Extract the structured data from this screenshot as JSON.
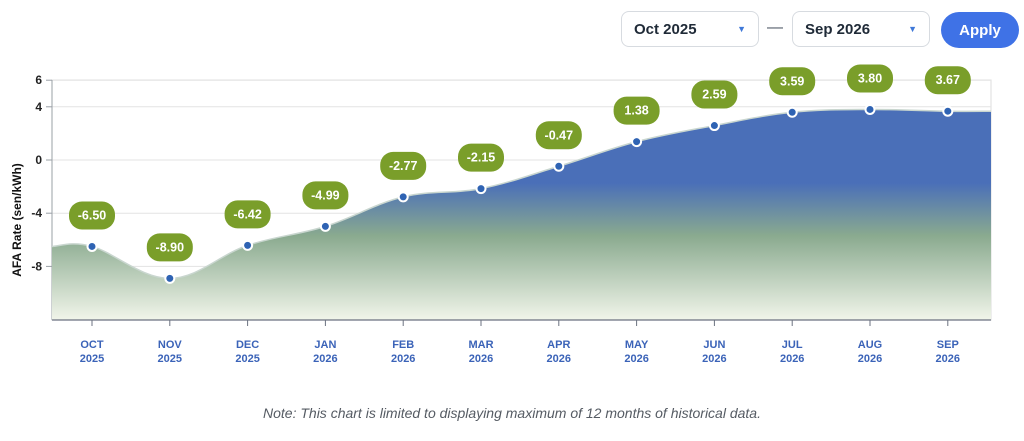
{
  "controls": {
    "from_value": "Oct 2025",
    "to_value": "Sep 2026",
    "separator": "—",
    "apply_label": "Apply"
  },
  "note": "Note: This chart is limited to displaying maximum of 12 months of historical data.",
  "colors": {
    "area_top": "#4a6fb8",
    "area_mid": "#8aaa8f",
    "area_bottom": "#f1f5ea",
    "label_bg": "#7a9e2a",
    "point": "#2f63b3",
    "axis_text": "#3b63b8",
    "apply_button": "#3f72e6"
  },
  "chart_data": {
    "type": "area",
    "categories": [
      [
        "OCT",
        "2025"
      ],
      [
        "NOV",
        "2025"
      ],
      [
        "DEC",
        "2025"
      ],
      [
        "JAN",
        "2026"
      ],
      [
        "FEB",
        "2026"
      ],
      [
        "MAR",
        "2026"
      ],
      [
        "APR",
        "2026"
      ],
      [
        "MAY",
        "2026"
      ],
      [
        "JUN",
        "2026"
      ],
      [
        "JUL",
        "2026"
      ],
      [
        "AUG",
        "2026"
      ],
      [
        "SEP",
        "2026"
      ]
    ],
    "values": [
      -6.5,
      -8.9,
      -6.42,
      -4.99,
      -2.77,
      -2.15,
      -0.47,
      1.38,
      2.59,
      3.59,
      3.8,
      3.67
    ],
    "data_labels": [
      "-6.50",
      "-8.90",
      "-6.42",
      "-4.99",
      "-2.77",
      "-2.15",
      "-0.47",
      "1.38",
      "2.59",
      "3.59",
      "3.80",
      "3.67"
    ],
    "ylabel": "AFA Rate (sen/kWh)",
    "yticks": [
      "6",
      "4",
      "0",
      "-4",
      "-8"
    ],
    "ylim": [
      -12,
      6
    ],
    "grid": true,
    "legend": "none"
  }
}
